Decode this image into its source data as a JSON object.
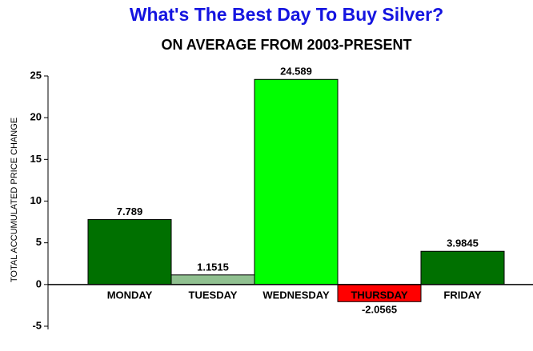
{
  "chart_data": {
    "type": "bar",
    "title": "What's The Best Day To Buy Silver?",
    "subtitle": "ON AVERAGE FROM 2003-PRESENT",
    "y_label": "TOTAL ACCUMULATED PRICE CHANGE",
    "categories": [
      "MONDAY",
      "TUESDAY",
      "WEDNESDAY",
      "THURSDAY",
      "FRIDAY"
    ],
    "values": [
      7.789,
      1.1515,
      24.589,
      -2.0565,
      3.9845
    ],
    "colors": [
      "#007000",
      "#90c090",
      "#00ff00",
      "#ff0000",
      "#007000"
    ],
    "title_color": "#1414e0",
    "ylim": [
      -5,
      25
    ],
    "yticks": [
      -5,
      0,
      5,
      10,
      15,
      20,
      25
    ],
    "grid": false
  }
}
